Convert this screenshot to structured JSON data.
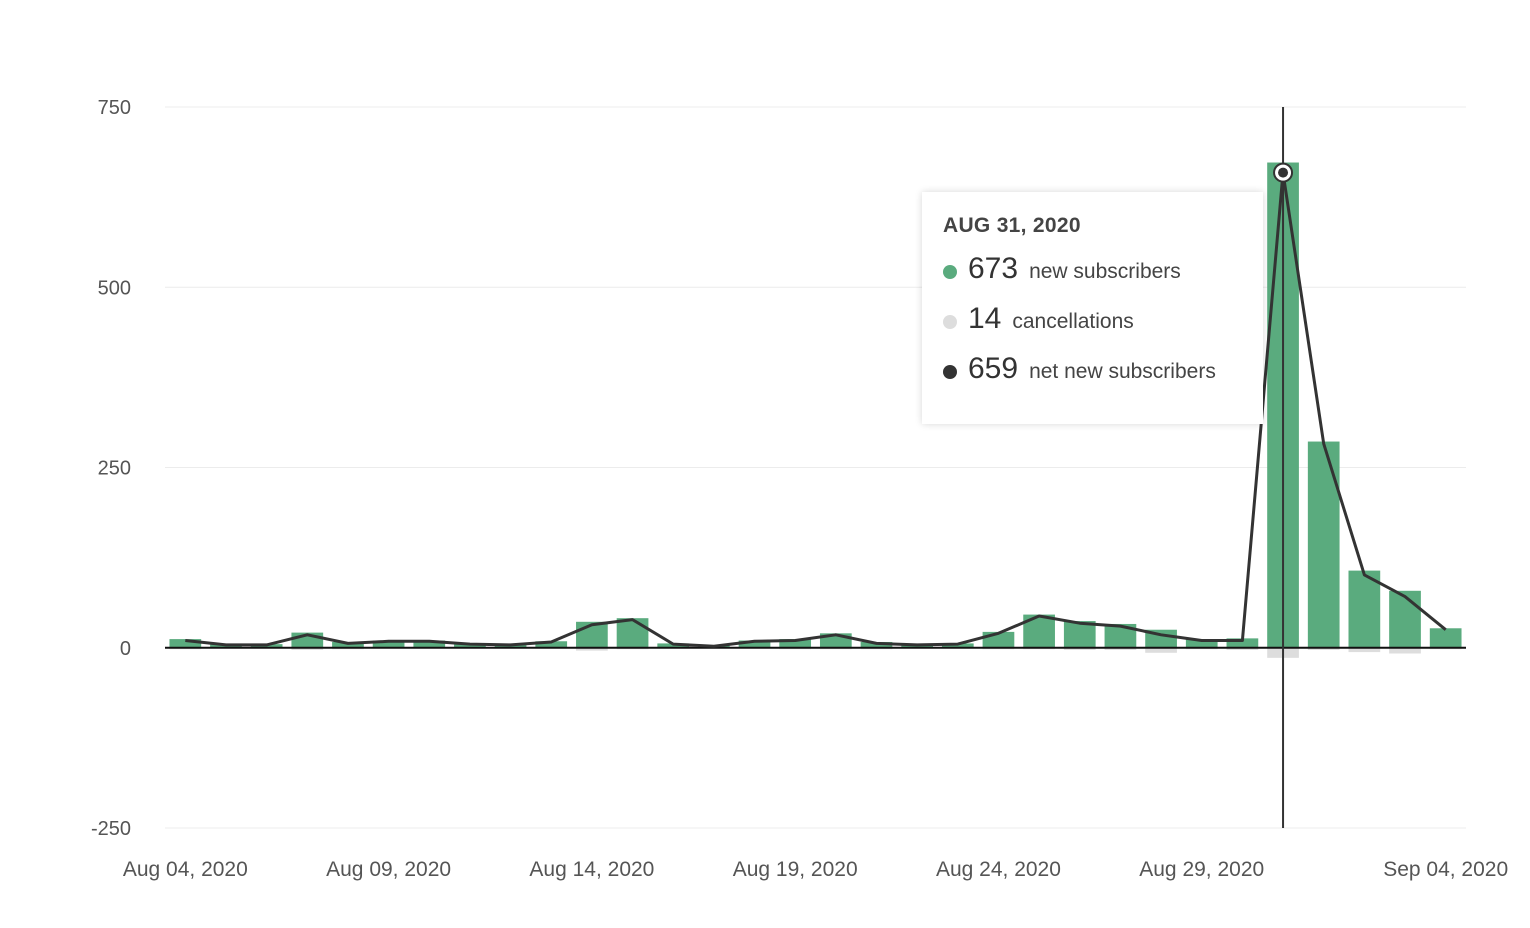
{
  "chart_data": {
    "type": "bar",
    "x": [
      "Aug 04, 2020",
      "Aug 05, 2020",
      "Aug 06, 2020",
      "Aug 07, 2020",
      "Aug 08, 2020",
      "Aug 09, 2020",
      "Aug 10, 2020",
      "Aug 11, 2020",
      "Aug 12, 2020",
      "Aug 13, 2020",
      "Aug 14, 2020",
      "Aug 15, 2020",
      "Aug 16, 2020",
      "Aug 17, 2020",
      "Aug 18, 2020",
      "Aug 19, 2020",
      "Aug 20, 2020",
      "Aug 21, 2020",
      "Aug 22, 2020",
      "Aug 23, 2020",
      "Aug 24, 2020",
      "Aug 25, 2020",
      "Aug 26, 2020",
      "Aug 27, 2020",
      "Aug 28, 2020",
      "Aug 29, 2020",
      "Aug 30, 2020",
      "Aug 31, 2020",
      "Sep 01, 2020",
      "Sep 02, 2020",
      "Sep 03, 2020",
      "Sep 04, 2020"
    ],
    "series": [
      {
        "name": "new subscribers",
        "type": "bar",
        "color": "#5aab7e",
        "values": [
          12,
          5,
          5,
          21,
          8,
          10,
          10,
          6,
          5,
          9,
          36,
          41,
          6,
          3,
          10,
          12,
          20,
          8,
          5,
          6,
          22,
          46,
          37,
          33,
          25,
          12,
          13,
          673,
          286,
          107,
          79,
          27
        ]
      },
      {
        "name": "cancellations",
        "type": "bar",
        "color": "#dddddd",
        "values": [
          2,
          1,
          1,
          3,
          2,
          1,
          1,
          1,
          1,
          1,
          4,
          2,
          1,
          1,
          1,
          2,
          2,
          2,
          1,
          1,
          2,
          2,
          3,
          3,
          7,
          2,
          3,
          14,
          3,
          6,
          8,
          2
        ]
      },
      {
        "name": "net new subscribers",
        "type": "line",
        "color": "#333333",
        "values": [
          10,
          4,
          4,
          18,
          6,
          9,
          9,
          5,
          4,
          8,
          32,
          39,
          5,
          2,
          9,
          10,
          18,
          6,
          4,
          5,
          20,
          44,
          34,
          30,
          18,
          10,
          10,
          659,
          283,
          101,
          71,
          25
        ]
      }
    ],
    "ylim": [
      -250,
      750
    ],
    "yticks": [
      "750",
      "500",
      "250",
      "0",
      "-250"
    ],
    "xtick_labels": [
      "Aug 04, 2020",
      "Aug 09, 2020",
      "Aug 14, 2020",
      "Aug 19, 2020",
      "Aug 24, 2020",
      "Aug 29, 2020",
      "Sep 04, 2020"
    ],
    "grid": true,
    "tooltip": {
      "date": "AUG 31, 2020",
      "rows": [
        {
          "value": "673",
          "label": "new subscribers",
          "color": "#5aab7e"
        },
        {
          "value": "14",
          "label": "cancellations",
          "color": "#dddddd"
        },
        {
          "value": "659",
          "label": "net new subscribers",
          "color": "#333333"
        }
      ]
    },
    "highlight_date": "Aug 31, 2020"
  }
}
